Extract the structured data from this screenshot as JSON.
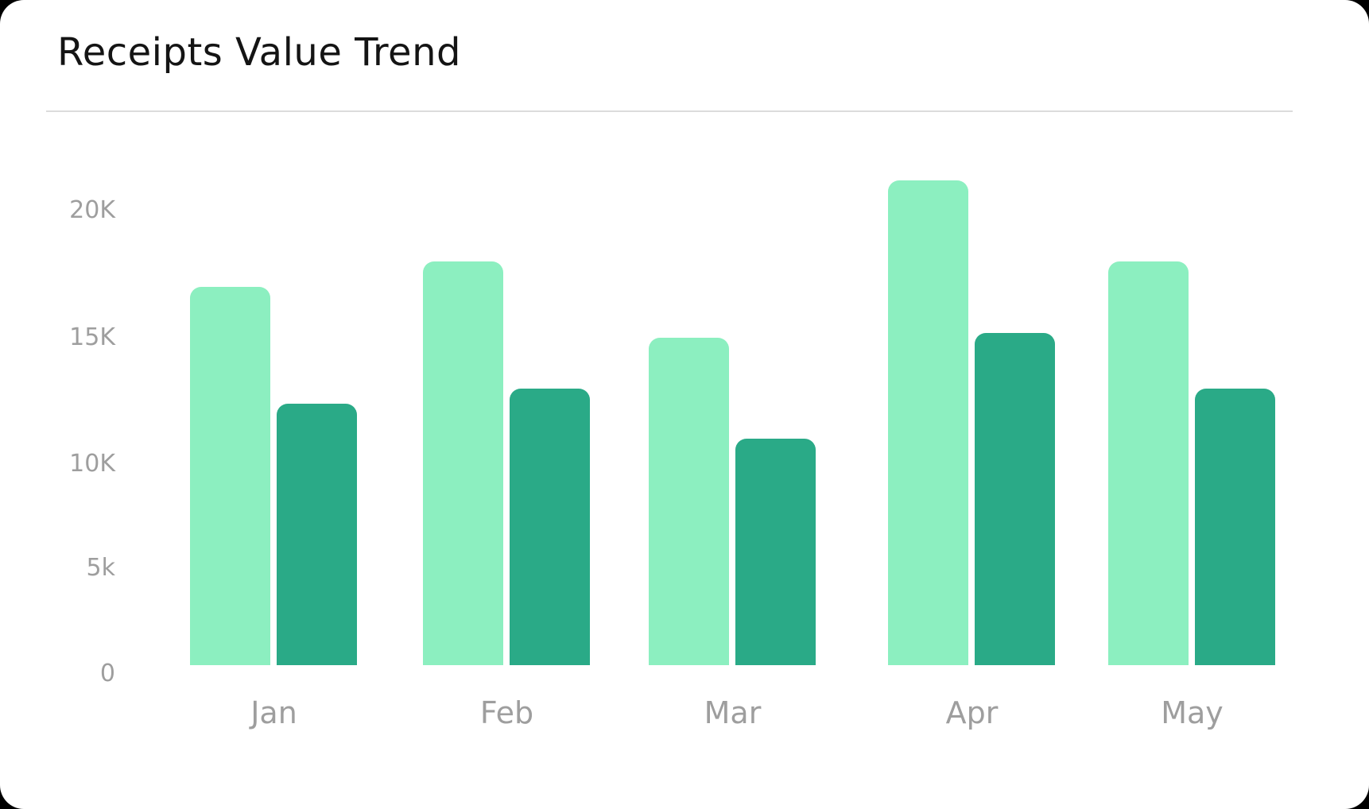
{
  "chart_data": {
    "type": "bar",
    "title": "Receipts Value Trend",
    "categories": [
      "Jan",
      "Feb",
      "Mar",
      "Apr",
      "May"
    ],
    "series": [
      {
        "color": "#8CEFC0",
        "values": [
          17000,
          18000,
          15000,
          21200,
          18000
        ]
      },
      {
        "color": "#2AAA87",
        "values": [
          12400,
          13000,
          11000,
          15200,
          13000
        ]
      }
    ],
    "yticks": [
      {
        "value": 20000,
        "label": "20K"
      },
      {
        "value": 15000,
        "label": "15K"
      },
      {
        "value": 10000,
        "label": "10K"
      },
      {
        "value": 5000,
        "label": "5k"
      },
      {
        "value": 0,
        "label": "0"
      }
    ],
    "ylim": [
      0,
      22000
    ],
    "grid": false,
    "legend": "none",
    "xlabel": "",
    "ylabel": ""
  },
  "colors": {
    "page_background": "#000000",
    "card_background": "#FFFFFF",
    "title_text": "#141414",
    "divider": "#DCDCDC",
    "axis_label": "#9E9E9E",
    "bar_light": "#8CEFC0",
    "bar_dark": "#2AAA87"
  }
}
